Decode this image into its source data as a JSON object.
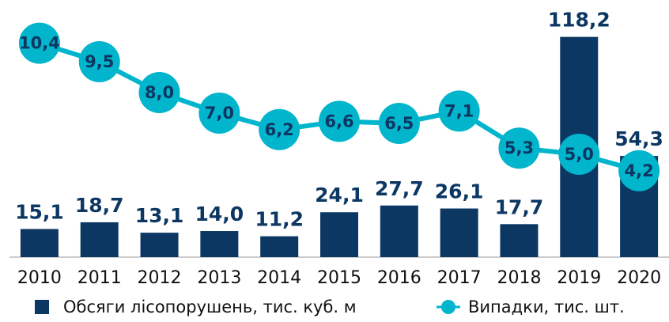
{
  "chart_data": {
    "type": "bar-line",
    "categories": [
      "2010",
      "2011",
      "2012",
      "2013",
      "2014",
      "2015",
      "2016",
      "2017",
      "2018",
      "2019",
      "2020"
    ],
    "series": [
      {
        "name": "Обсяги лісопорушень, тис. куб. м",
        "type": "bar",
        "color": "#0c3763",
        "values": [
          15.1,
          18.7,
          13.1,
          14.0,
          11.2,
          24.1,
          27.7,
          26.1,
          17.7,
          118.2,
          54.3
        ],
        "value_labels": [
          "15,1",
          "18,7",
          "13,1",
          "14,0",
          "11,2",
          "24,1",
          "27,7",
          "26,1",
          "17,7",
          "118,2",
          "54,3"
        ]
      },
      {
        "name": "Випадки, тис. шт.",
        "type": "line",
        "axis": "y2",
        "color": "#00b5cc",
        "values": [
          10.4,
          9.5,
          8.0,
          7.0,
          6.2,
          6.6,
          6.5,
          7.1,
          5.3,
          5.0,
          4.2
        ],
        "value_labels": [
          "10,4",
          "9,5",
          "8,0",
          "7,0",
          "6,2",
          "6,6",
          "6,5",
          "7,1",
          "5,3",
          "5,0",
          "4,2"
        ]
      }
    ],
    "ylim": [
      0,
      138
    ],
    "y2lim": [
      0,
      12.5
    ]
  }
}
